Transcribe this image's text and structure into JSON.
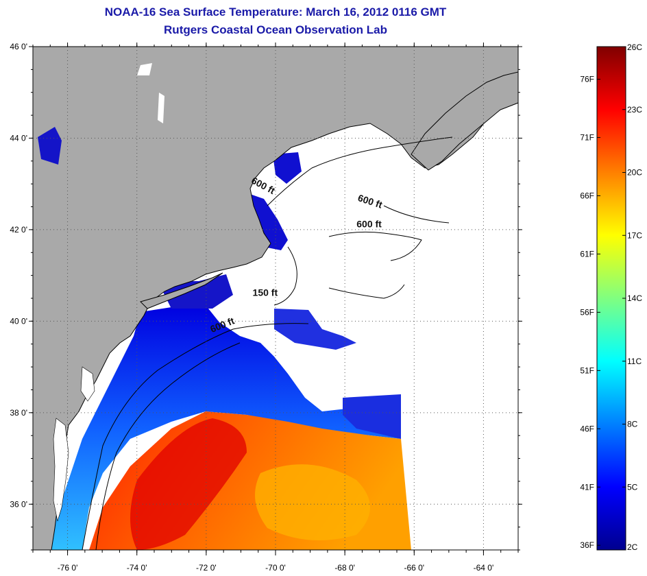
{
  "header": {
    "title": "NOAA-16 Sea Surface Temperature:  March 16, 2012 0116 GMT",
    "subtitle": "Rutgers Coastal Ocean Observation Lab"
  },
  "map": {
    "lon_range": [
      -77,
      -63
    ],
    "lat_range": [
      35,
      46
    ],
    "lat_ticks": [
      {
        "value": 46,
        "label": "46 0'"
      },
      {
        "value": 44,
        "label": "44 0'"
      },
      {
        "value": 42,
        "label": "42 0'"
      },
      {
        "value": 40,
        "label": "40 0'"
      },
      {
        "value": 38,
        "label": "38 0'"
      },
      {
        "value": 36,
        "label": "36 0'"
      }
    ],
    "lon_ticks": [
      {
        "value": -76,
        "label": "-76 0'"
      },
      {
        "value": -74,
        "label": "-74 0'"
      },
      {
        "value": -72,
        "label": "-72 0'"
      },
      {
        "value": -70,
        "label": "-70 0'"
      },
      {
        "value": -68,
        "label": "-68 0'"
      },
      {
        "value": -66,
        "label": "-66 0'"
      },
      {
        "value": -64,
        "label": "-64 0'"
      }
    ],
    "depth_labels": [
      {
        "text": "600 ft",
        "lon": -70.4,
        "lat": 42.9,
        "rotate": 28
      },
      {
        "text": "600 ft",
        "lon": -67.3,
        "lat": 42.55,
        "rotate": 18
      },
      {
        "text": "600 ft",
        "lon": -67.3,
        "lat": 42.05,
        "rotate": 0
      },
      {
        "text": "150 ft",
        "lon": -70.3,
        "lat": 40.55,
        "rotate": 0
      },
      {
        "text": "600 ft",
        "lon": -71.5,
        "lat": 39.85,
        "rotate": -22
      }
    ],
    "colors": {
      "land": "#a9a9a9",
      "no_data": "#ffffff",
      "grid": "#333333"
    }
  },
  "colorbar": {
    "min_c": 2,
    "max_c": 26,
    "celsius_labels": [
      "26C",
      "23C",
      "20C",
      "17C",
      "14C",
      "11C",
      "8C",
      "5C",
      "2C"
    ],
    "fahrenheit_labels": [
      "76F",
      "71F",
      "66F",
      "61F",
      "56F",
      "51F",
      "46F",
      "41F",
      "36F"
    ],
    "stops": [
      "#00008f",
      "#0000ff",
      "#0080ff",
      "#00ffff",
      "#80ff80",
      "#ffff00",
      "#ff8000",
      "#ff0000",
      "#800000"
    ]
  }
}
